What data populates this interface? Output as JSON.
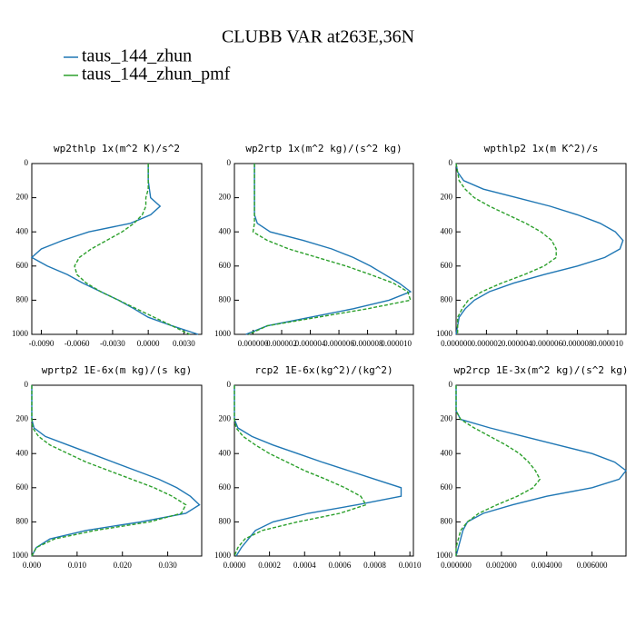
{
  "title": "CLUBB VAR at263E,36N",
  "legend": [
    {
      "name": "taus_144_zhun",
      "color": "#1f77b4"
    },
    {
      "name": "taus_144_zhun_pmf",
      "color": "#2ca02c"
    }
  ],
  "chart_data": [
    {
      "type": "line",
      "title": "wp2thlp  1x(m^2 K)/s^2",
      "yinvert": true,
      "y": [
        0,
        50,
        100,
        150,
        200,
        250,
        300,
        350,
        400,
        450,
        500,
        550,
        600,
        650,
        700,
        750,
        800,
        850,
        900,
        950,
        1000
      ],
      "series": [
        {
          "color": "#1f77b4",
          "dash": false,
          "values": [
            0,
            0,
            0,
            0.0001,
            0.0002,
            0.001,
            0.0002,
            -0.0015,
            -0.005,
            -0.0072,
            -0.009,
            -0.0098,
            -0.0085,
            -0.0068,
            -0.0055,
            -0.004,
            -0.0025,
            -0.0012,
            0,
            0.002,
            0.0042
          ]
        },
        {
          "color": "#2ca02c",
          "dash": true,
          "values": [
            0,
            0,
            0,
            0,
            -0.0002,
            -0.0002,
            -0.0005,
            -0.0012,
            -0.0022,
            -0.0035,
            -0.0048,
            -0.0058,
            -0.0062,
            -0.006,
            -0.0052,
            -0.004,
            -0.0025,
            -0.001,
            0.0005,
            0.002,
            0.0035
          ]
        }
      ],
      "xlim": [
        -0.0098,
        0.0045
      ],
      "xticks": [
        {
          "value": -0.009,
          "label": "-0.0090"
        },
        {
          "value": -0.006,
          "label": "-0.0060"
        },
        {
          "value": -0.003,
          "label": "-0.0030"
        },
        {
          "value": 0,
          "label": "0.0000"
        },
        {
          "value": 0.003,
          "label": "0.0030"
        }
      ],
      "ylim": [
        0,
        1000
      ],
      "yticks": [
        0,
        200,
        400,
        600,
        800,
        1000
      ]
    },
    {
      "type": "line",
      "title": "wp2rtp  1x(m^2 kg)/(s^2 kg)",
      "yinvert": true,
      "y": [
        0,
        50,
        100,
        150,
        200,
        250,
        300,
        350,
        400,
        450,
        500,
        550,
        600,
        650,
        700,
        750,
        800,
        850,
        900,
        950,
        1000
      ],
      "series": [
        {
          "color": "#1f77b4",
          "dash": false,
          "values": [
            1e-07,
            1e-07,
            1e-07,
            1e-07,
            1e-07,
            1e-07,
            1e-07,
            3e-07,
            1.2e-06,
            3.5e-06,
            5.5e-06,
            7e-06,
            8.2e-06,
            9.2e-06,
            1.02e-05,
            1.1e-05,
            9.5e-06,
            7e-06,
            4e-06,
            1e-06,
            -5e-07
          ]
        },
        {
          "color": "#2ca02c",
          "dash": true,
          "values": [
            1e-07,
            1e-07,
            1e-07,
            1e-07,
            1e-07,
            1e-07,
            1e-07,
            1e-07,
            0,
            1e-06,
            2.5e-06,
            4.5e-06,
            6.5e-06,
            8.2e-06,
            9.8e-06,
            1.08e-05,
            1.1e-05,
            8e-06,
            4.5e-06,
            1e-06,
            -3e-07
          ]
        }
      ],
      "xlim": [
        -1.3e-06,
        1.12e-05
      ],
      "xticks": [
        {
          "value": 0,
          "label": "0.000000"
        },
        {
          "value": 2e-06,
          "label": "0.000002"
        },
        {
          "value": 4e-06,
          "label": "0.000004"
        },
        {
          "value": 6e-06,
          "label": "0.000006"
        },
        {
          "value": 8e-06,
          "label": "0.000008"
        },
        {
          "value": 1e-05,
          "label": "0.000010"
        }
      ],
      "ylim": [
        0,
        1000
      ],
      "yticks": [
        0,
        200,
        400,
        600,
        800,
        1000
      ]
    },
    {
      "type": "line",
      "title": "wpthlp2  1x(m K^2)/s",
      "yinvert": true,
      "y": [
        0,
        50,
        100,
        150,
        200,
        250,
        300,
        350,
        400,
        450,
        500,
        550,
        600,
        650,
        700,
        750,
        800,
        850,
        900,
        950,
        1000
      ],
      "series": [
        {
          "color": "#1f77b4",
          "dash": false,
          "values": [
            0,
            1e-07,
            5e-07,
            1.8e-06,
            4e-06,
            6.2e-06,
            8e-06,
            9.5e-06,
            1.05e-05,
            1.1e-05,
            1.08e-05,
            9.8e-06,
            8e-06,
            5.8e-06,
            3.8e-06,
            2.2e-06,
            1.2e-06,
            6e-07,
            2e-07,
            1e-07,
            0
          ]
        },
        {
          "color": "#2ca02c",
          "dash": true,
          "values": [
            0,
            1e-07,
            2e-07,
            6e-07,
            1.2e-06,
            2.2e-06,
            3.4e-06,
            4.6e-06,
            5.6e-06,
            6.3e-06,
            6.6e-06,
            6.6e-06,
            5.8e-06,
            4.5e-06,
            3e-06,
            1.7e-06,
            8e-07,
            4e-07,
            1e-07,
            1e-07,
            1e-07
          ]
        }
      ],
      "xlim": [
        0,
        1.12e-05
      ],
      "xticks": [
        {
          "value": 0,
          "label": "0.000000"
        },
        {
          "value": 2e-06,
          "label": "0.000002"
        },
        {
          "value": 4e-06,
          "label": "0.000004"
        },
        {
          "value": 6e-06,
          "label": "0.000006"
        },
        {
          "value": 8e-06,
          "label": "0.000008"
        },
        {
          "value": 1e-05,
          "label": "0.000010"
        }
      ],
      "ylim": [
        0,
        1000
      ],
      "yticks": [
        0,
        200,
        400,
        600,
        800,
        1000
      ]
    },
    {
      "type": "line",
      "title": "wprtp2  1E-6x(m kg)/(s kg)",
      "yinvert": true,
      "y": [
        0,
        50,
        100,
        150,
        200,
        250,
        300,
        350,
        400,
        450,
        500,
        550,
        600,
        650,
        700,
        750,
        800,
        850,
        900,
        950,
        1000
      ],
      "series": [
        {
          "color": "#1f77b4",
          "dash": false,
          "values": [
            0,
            0,
            0,
            0,
            0,
            0.0005,
            0.003,
            0.008,
            0.013,
            0.018,
            0.023,
            0.028,
            0.032,
            0.035,
            0.037,
            0.034,
            0.024,
            0.012,
            0.004,
            0.001,
            0
          ]
        },
        {
          "color": "#2ca02c",
          "dash": true,
          "values": [
            0,
            0,
            0,
            0,
            0,
            0.0002,
            0.0015,
            0.004,
            0.008,
            0.012,
            0.017,
            0.022,
            0.027,
            0.031,
            0.034,
            0.033,
            0.026,
            0.014,
            0.005,
            0.001,
            0
          ]
        }
      ],
      "xlim": [
        0,
        0.0375
      ],
      "xticks": [
        {
          "value": 0,
          "label": "0.000"
        },
        {
          "value": 0.01,
          "label": "0.010"
        },
        {
          "value": 0.02,
          "label": "0.020"
        },
        {
          "value": 0.03,
          "label": "0.030"
        }
      ],
      "ylim": [
        0,
        1000
      ],
      "yticks": [
        0,
        200,
        400,
        600,
        800,
        1000
      ]
    },
    {
      "type": "line",
      "title": "rcp2  1E-6x(kg^2)/(kg^2)",
      "yinvert": true,
      "y": [
        0,
        50,
        100,
        150,
        200,
        250,
        300,
        350,
        400,
        450,
        500,
        550,
        600,
        650,
        700,
        750,
        800,
        850,
        900,
        950,
        1000
      ],
      "series": [
        {
          "color": "#1f77b4",
          "dash": false,
          "values": [
            0,
            0,
            0,
            0,
            0,
            2e-05,
            0.0001,
            0.00022,
            0.00036,
            0.0005,
            0.00065,
            0.0008,
            0.00095,
            0.00095,
            0.0007,
            0.00042,
            0.00022,
            0.00012,
            8e-05,
            4e-05,
            1e-05
          ]
        },
        {
          "color": "#2ca02c",
          "dash": true,
          "values": [
            0,
            0,
            0,
            0,
            0,
            1e-05,
            5e-05,
            0.00012,
            0.0002,
            0.0003,
            0.0004,
            0.00052,
            0.00063,
            0.00072,
            0.00075,
            0.0006,
            0.00036,
            0.00016,
            6e-05,
            2e-05,
            0
          ]
        }
      ],
      "xlim": [
        0,
        0.00102
      ],
      "xticks": [
        {
          "value": 0,
          "label": "0.0000"
        },
        {
          "value": 0.0002,
          "label": "0.0002"
        },
        {
          "value": 0.0004,
          "label": "0.0004"
        },
        {
          "value": 0.0006,
          "label": "0.0006"
        },
        {
          "value": 0.0008,
          "label": "0.0008"
        },
        {
          "value": 0.001,
          "label": "0.0010"
        }
      ],
      "ylim": [
        0,
        1000
      ],
      "yticks": [
        0,
        200,
        400,
        600,
        800,
        1000
      ]
    },
    {
      "type": "line",
      "title": "wp2rcp  1E-3x(m^2 kg)/(s^2 kg)",
      "yinvert": true,
      "y": [
        0,
        50,
        100,
        150,
        200,
        250,
        300,
        350,
        400,
        450,
        500,
        550,
        600,
        650,
        700,
        750,
        800,
        850,
        900,
        950,
        1000
      ],
      "series": [
        {
          "color": "#1f77b4",
          "dash": false,
          "values": [
            0,
            0,
            0,
            0,
            0.0002,
            0.0015,
            0.003,
            0.0045,
            0.006,
            0.007,
            0.0075,
            0.0072,
            0.006,
            0.004,
            0.0025,
            0.0012,
            0.0005,
            0.0003,
            0.0002,
            0.0001,
            0
          ]
        },
        {
          "color": "#2ca02c",
          "dash": true,
          "values": [
            0,
            0,
            0,
            0,
            0.0002,
            0.0008,
            0.0015,
            0.0022,
            0.0028,
            0.0032,
            0.0035,
            0.0037,
            0.0034,
            0.0027,
            0.0018,
            0.001,
            0.0005,
            0.0002,
            0.0001,
            0,
            0
          ]
        }
      ],
      "xlim": [
        0,
        0.0075
      ],
      "xticks": [
        {
          "value": 0,
          "label": "0.000000"
        },
        {
          "value": 0.002,
          "label": "0.002000"
        },
        {
          "value": 0.004,
          "label": "0.004000"
        },
        {
          "value": 0.006,
          "label": "0.006000"
        }
      ],
      "ylim": [
        0,
        1000
      ],
      "yticks": [
        0,
        200,
        400,
        600,
        800,
        1000
      ]
    }
  ]
}
